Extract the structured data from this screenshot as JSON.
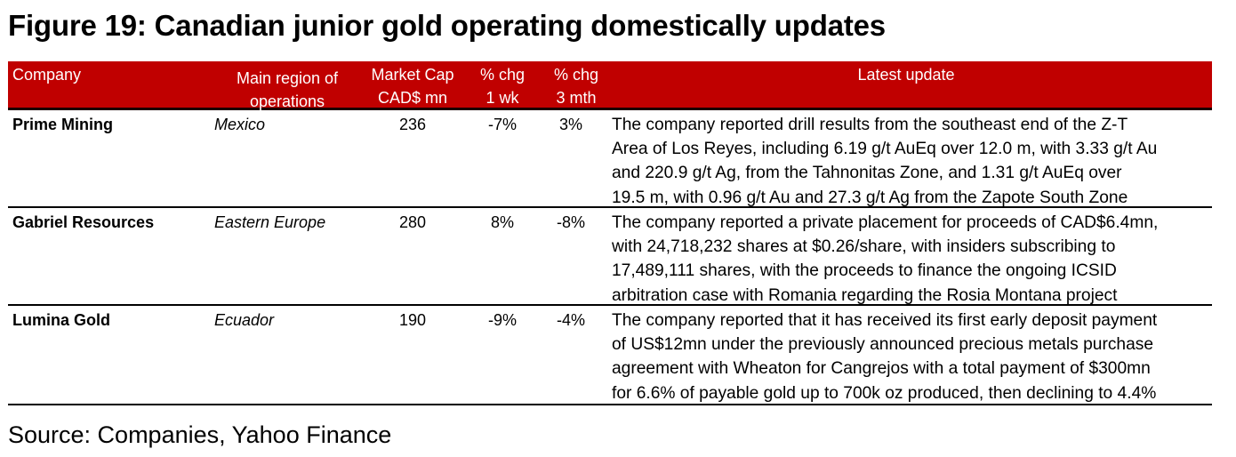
{
  "title": "Figure 19: Canadian junior gold operating domestically updates",
  "table": {
    "header_color": "#c00000",
    "columns": {
      "company": "Company",
      "region_line1": "Main region of",
      "region_line2": "operations",
      "mcap_line1": "Market Cap",
      "mcap_line2": "CAD$ mn",
      "wk_line1": "% chg",
      "wk_line2": "1 wk",
      "mth_line1": "% chg",
      "mth_line2": "3 mth",
      "update": "Latest update"
    },
    "rows": [
      {
        "company": "Prime Mining",
        "region": "Mexico",
        "market_cap": "236",
        "chg_1wk": "-7%",
        "chg_3mth": "3%",
        "update_lines": [
          "The company reported drill results from the southeast end of the Z-T",
          "Area of Los Reyes, including 6.19 g/t AuEq over 12.0 m, with 3.33 g/t Au",
          "and 220.9 g/t Ag, from the Tahnonitas Zone, and 1.31 g/t AuEq over",
          "19.5 m, with 0.96 g/t Au and 27.3 g/t Ag from the Zapote South Zone"
        ]
      },
      {
        "company": "Gabriel Resources",
        "region": "Eastern Europe",
        "market_cap": "280",
        "chg_1wk": "8%",
        "chg_3mth": "-8%",
        "update_lines": [
          "The company reported a private placement for proceeds of CAD$6.4mn,",
          "with 24,718,232 shares at $0.26/share, with insiders subscribing to",
          "17,489,111 shares, with the proceeds to finance the ongoing ICSID",
          "arbitration case with Romania regarding the Rosia Montana project"
        ]
      },
      {
        "company": "Lumina Gold",
        "region": "Ecuador",
        "market_cap": "190",
        "chg_1wk": "-9%",
        "chg_3mth": "-4%",
        "update_lines": [
          "The company reported that it has received its first early deposit payment",
          "of US$12mn under the previously announced precious metals purchase",
          "agreement with Wheaton for Cangrejos with a total payment of $300mn",
          "for 6.6% of payable gold up to 700k oz produced, then declining to 4.4%"
        ]
      }
    ]
  },
  "source": "Source: Companies, Yahoo Finance"
}
